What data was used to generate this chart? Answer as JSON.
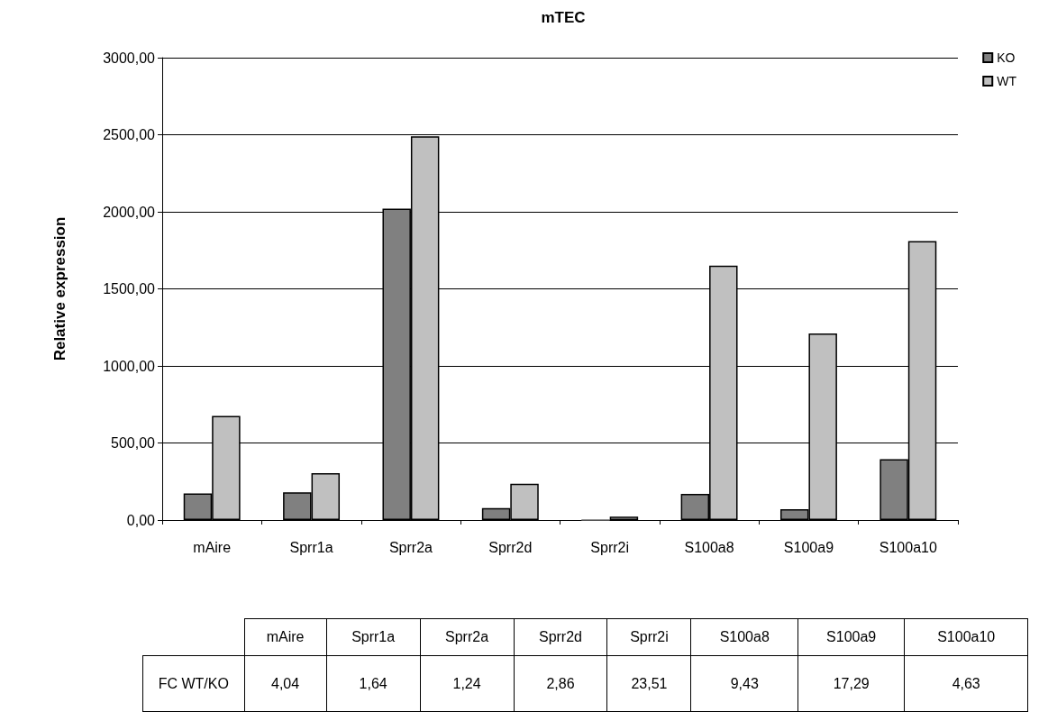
{
  "chart_data": [
    {
      "type": "bar",
      "title": "mTEC",
      "ylabel": "Relative expression",
      "categories": [
        "mAire",
        "Sprr1a",
        "Sprr2a",
        "Sprr2d",
        "Sprr2i",
        "S100a8",
        "S100a9",
        "S100a10"
      ],
      "series": [
        {
          "name": "KO",
          "color": "#808080",
          "values": [
            173,
            180,
            2020,
            78,
            1,
            170,
            70,
            395
          ]
        },
        {
          "name": "WT",
          "color": "#c0c0c0",
          "values": [
            676,
            304,
            2490,
            235,
            22,
            1650,
            1210,
            1810
          ]
        }
      ],
      "ylim": [
        0,
        3000
      ],
      "yticks": [
        {
          "value": 0,
          "label": "0,00"
        },
        {
          "value": 500,
          "label": "500,00"
        },
        {
          "value": 1000,
          "label": "1000,00"
        },
        {
          "value": 1500,
          "label": "1500,00"
        },
        {
          "value": 2000,
          "label": "2000,00"
        },
        {
          "value": 2500,
          "label": "2500,00"
        },
        {
          "value": 3000,
          "label": "3000,00"
        }
      ],
      "grid": "y",
      "legend": "top right"
    },
    {
      "type": "other",
      "ylabel": "FC WT/KO",
      "categories": [
        "mAire",
        "Sprr1a",
        "Sprr2a",
        "Sprr2d",
        "Sprr2i",
        "S100a8",
        "S100a9",
        "S100a10"
      ],
      "value_labels": [
        "4,04",
        "1,64",
        "1,24",
        "2,86",
        "23,51",
        "9,43",
        "17,29",
        "4,63"
      ]
    }
  ]
}
